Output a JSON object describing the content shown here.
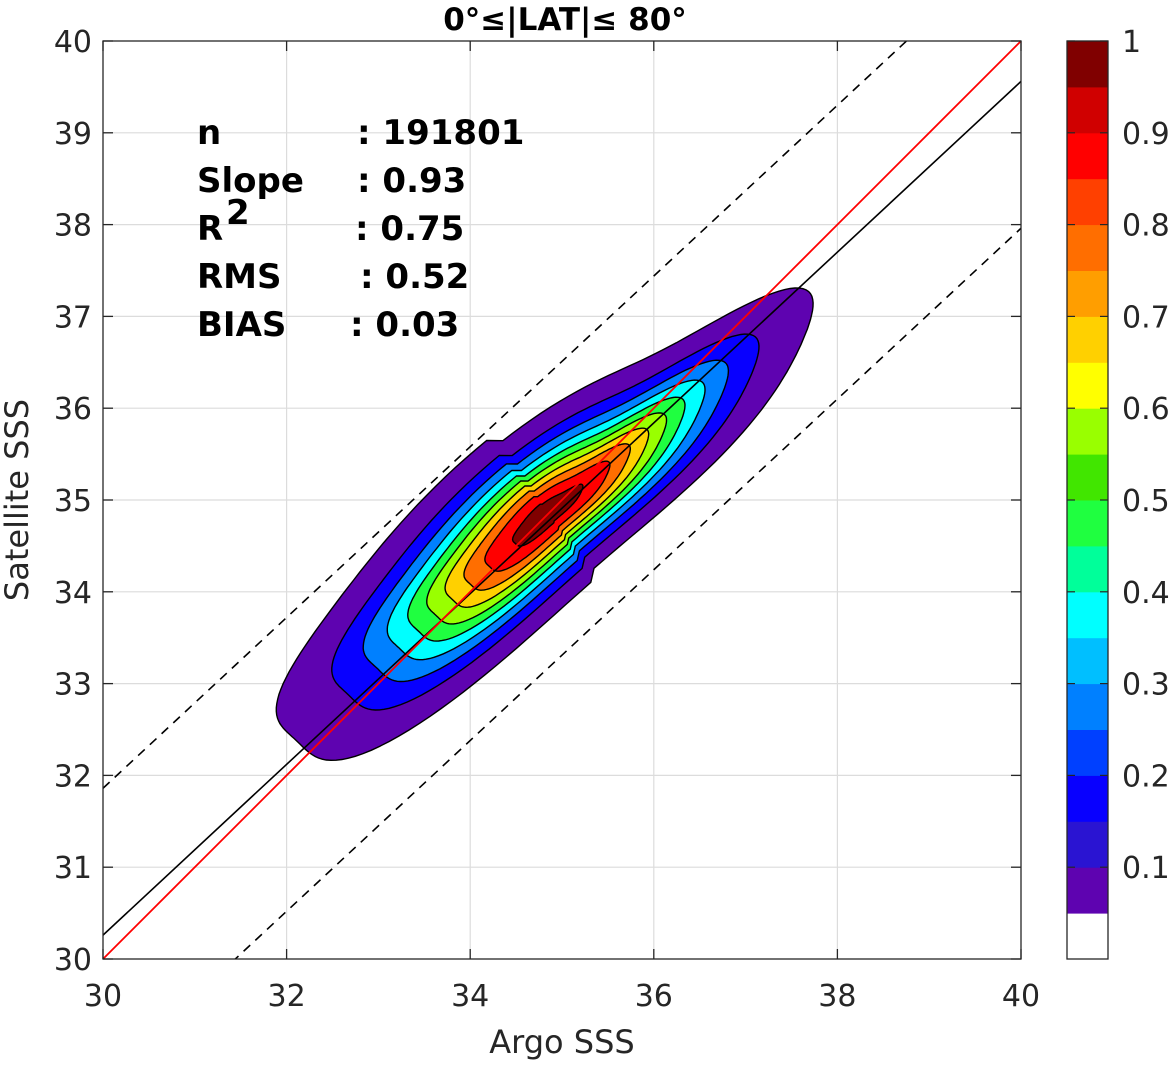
{
  "chart_data": {
    "type": "contour",
    "title": "0°≤|LAT|≤ 80°",
    "xlabel": "Argo SSS",
    "ylabel": "Satellite SSS",
    "xlim": [
      30,
      40
    ],
    "ylim": [
      30,
      40
    ],
    "xticks": [
      30,
      32,
      34,
      36,
      38,
      40
    ],
    "yticks": [
      30,
      31,
      32,
      33,
      34,
      35,
      36,
      37,
      38,
      39,
      40
    ],
    "grid": true,
    "stats": [
      {
        "label": "n",
        "value": ": 191801"
      },
      {
        "label": "Slope",
        "value": ": 0.93"
      },
      {
        "label": "R",
        "sup": "2",
        "value": ": 0.75"
      },
      {
        "label": "RMS",
        "value": ": 0.52"
      },
      {
        "label": "BIAS",
        "value": ": 0.03"
      }
    ],
    "lines": {
      "identity": {
        "slope": 1.0,
        "intercept": 0.0,
        "color": "#ff0000"
      },
      "regression": {
        "slope": 0.93,
        "intercept": 2.36,
        "color": "#000000"
      },
      "offset_dashed": [
        1.6,
        -1.6
      ]
    },
    "density_peak": {
      "x": 34.85,
      "y": 34.85
    },
    "contour_levels": [
      0.05,
      0.15,
      0.25,
      0.35,
      0.45,
      0.55,
      0.65,
      0.75,
      0.85,
      0.95
    ],
    "colorbar": {
      "ticks": [
        1,
        0.9,
        0.8,
        0.7,
        0.6,
        0.5,
        0.4,
        0.3,
        0.2,
        0.1
      ],
      "range": [
        0,
        1
      ],
      "colors": [
        "#ffffff",
        "#5e03b0",
        "#2a14d2",
        "#0800ff",
        "#0040ff",
        "#0080ff",
        "#00bfff",
        "#00ffff",
        "#00ff9a",
        "#1fff40",
        "#41e600",
        "#99ff00",
        "#ffff00",
        "#ffd000",
        "#ff9e00",
        "#ff6e00",
        "#ff4000",
        "#ff0000",
        "#d00000",
        "#800000"
      ]
    }
  }
}
